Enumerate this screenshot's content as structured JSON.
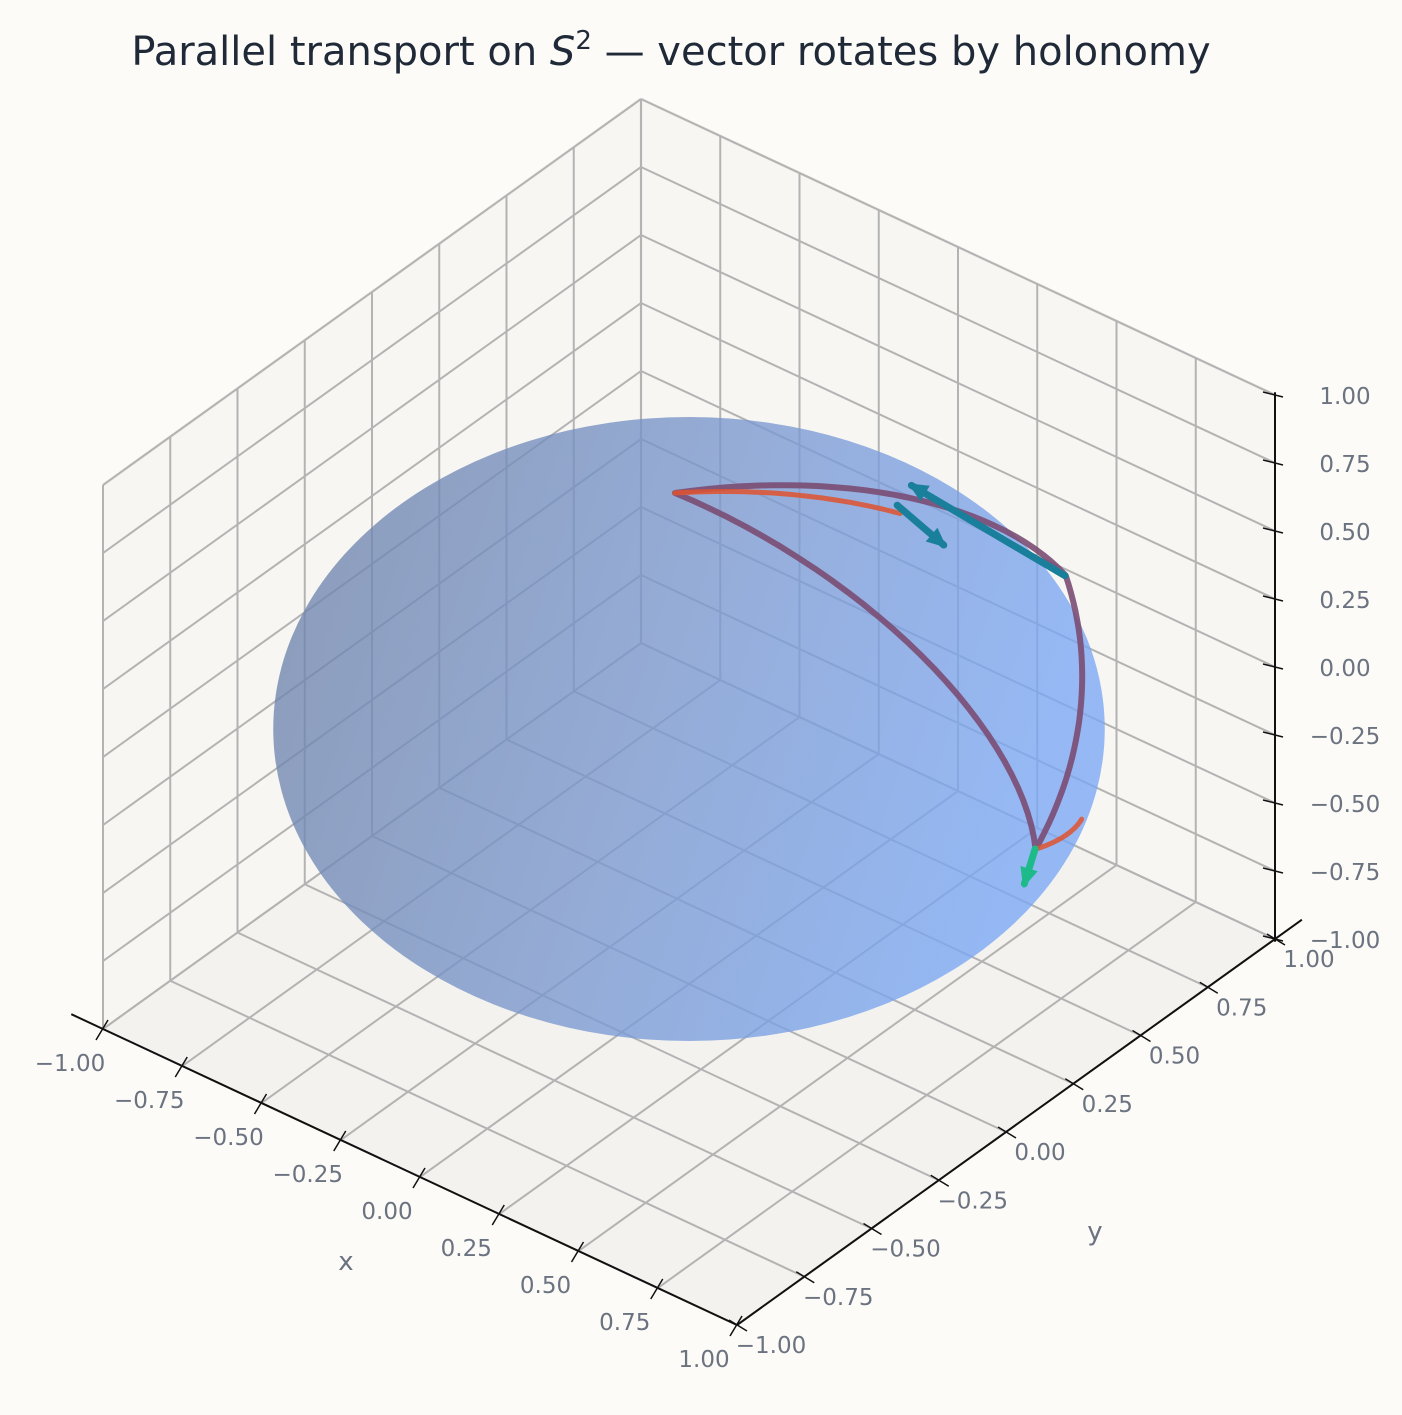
{
  "chart_data": {
    "type": "surface3d",
    "title": {
      "prefix": "Parallel transport on ",
      "math_symbol": "S",
      "superscript": "2",
      "suffix": " — vector rotates by holonomy"
    },
    "xlabel": "x",
    "ylabel": "y",
    "zlabel": "",
    "xlim": [
      -1.0,
      1.0
    ],
    "ylim": [
      -1.0,
      1.0
    ],
    "zlim": [
      -1.0,
      1.0
    ],
    "x_ticks": [
      "−1.00",
      "−0.75",
      "−0.50",
      "−0.25",
      "0.00",
      "0.25",
      "0.50",
      "0.75",
      "1.00"
    ],
    "y_ticks": [
      "−1.00",
      "−0.75",
      "−0.50",
      "−0.25",
      "0.00",
      "0.25",
      "0.50",
      "0.75",
      "1.00"
    ],
    "z_ticks": [
      "−1.00",
      "−0.75",
      "−0.50",
      "−0.25",
      "0.00",
      "0.25",
      "0.50",
      "0.75",
      "1.00"
    ],
    "grid": true,
    "view": {
      "elev_deg": 20,
      "azim_deg": -45
    },
    "surface": {
      "name": "unit sphere S2",
      "radius": 1.0,
      "color": "#7aa7f5",
      "opacity": 0.78
    },
    "paths": [
      {
        "name": "geodesic triangle loop",
        "color": "#7a4d73",
        "closed": true,
        "vertices": [
          [
            0.1,
            -0.17,
            0.98
          ],
          [
            0.66,
            0.62,
            0.42
          ],
          [
            0.99,
            0.12,
            -0.05
          ]
        ]
      },
      {
        "name": "highlight arc near pole",
        "color": "#e0522e",
        "vertices": [
          [
            0.1,
            -0.17,
            0.98
          ],
          [
            0.49,
            0.21,
            0.85
          ]
        ]
      },
      {
        "name": "highlight arc at start point",
        "color": "#e0522e",
        "vertices": [
          [
            0.89,
            0.42,
            -0.21
          ],
          [
            0.99,
            0.12,
            -0.05
          ]
        ]
      }
    ],
    "vectors": [
      {
        "name": "initial vector",
        "color": "#1fba8a",
        "start": [
          0.99,
          0.12,
          -0.05
        ],
        "end": [
          0.99,
          0.08,
          -0.15
        ]
      },
      {
        "name": "transported vector at pole",
        "color": "#1a7f9a",
        "start": [
          0.47,
          0.22,
          0.86
        ],
        "end": [
          0.6,
          0.24,
          0.77
        ]
      },
      {
        "name": "transported vector along geodesic",
        "color": "#1a7f9a",
        "start": [
          0.66,
          0.62,
          0.42
        ],
        "end": [
          0.43,
          0.32,
          0.84
        ]
      }
    ]
  },
  "colors": {
    "background": "#fcfbf7",
    "grid": "#b3b3b3",
    "axis_line": "#111111",
    "tick_text": "#6b7280",
    "title_text": "#1f2937"
  }
}
